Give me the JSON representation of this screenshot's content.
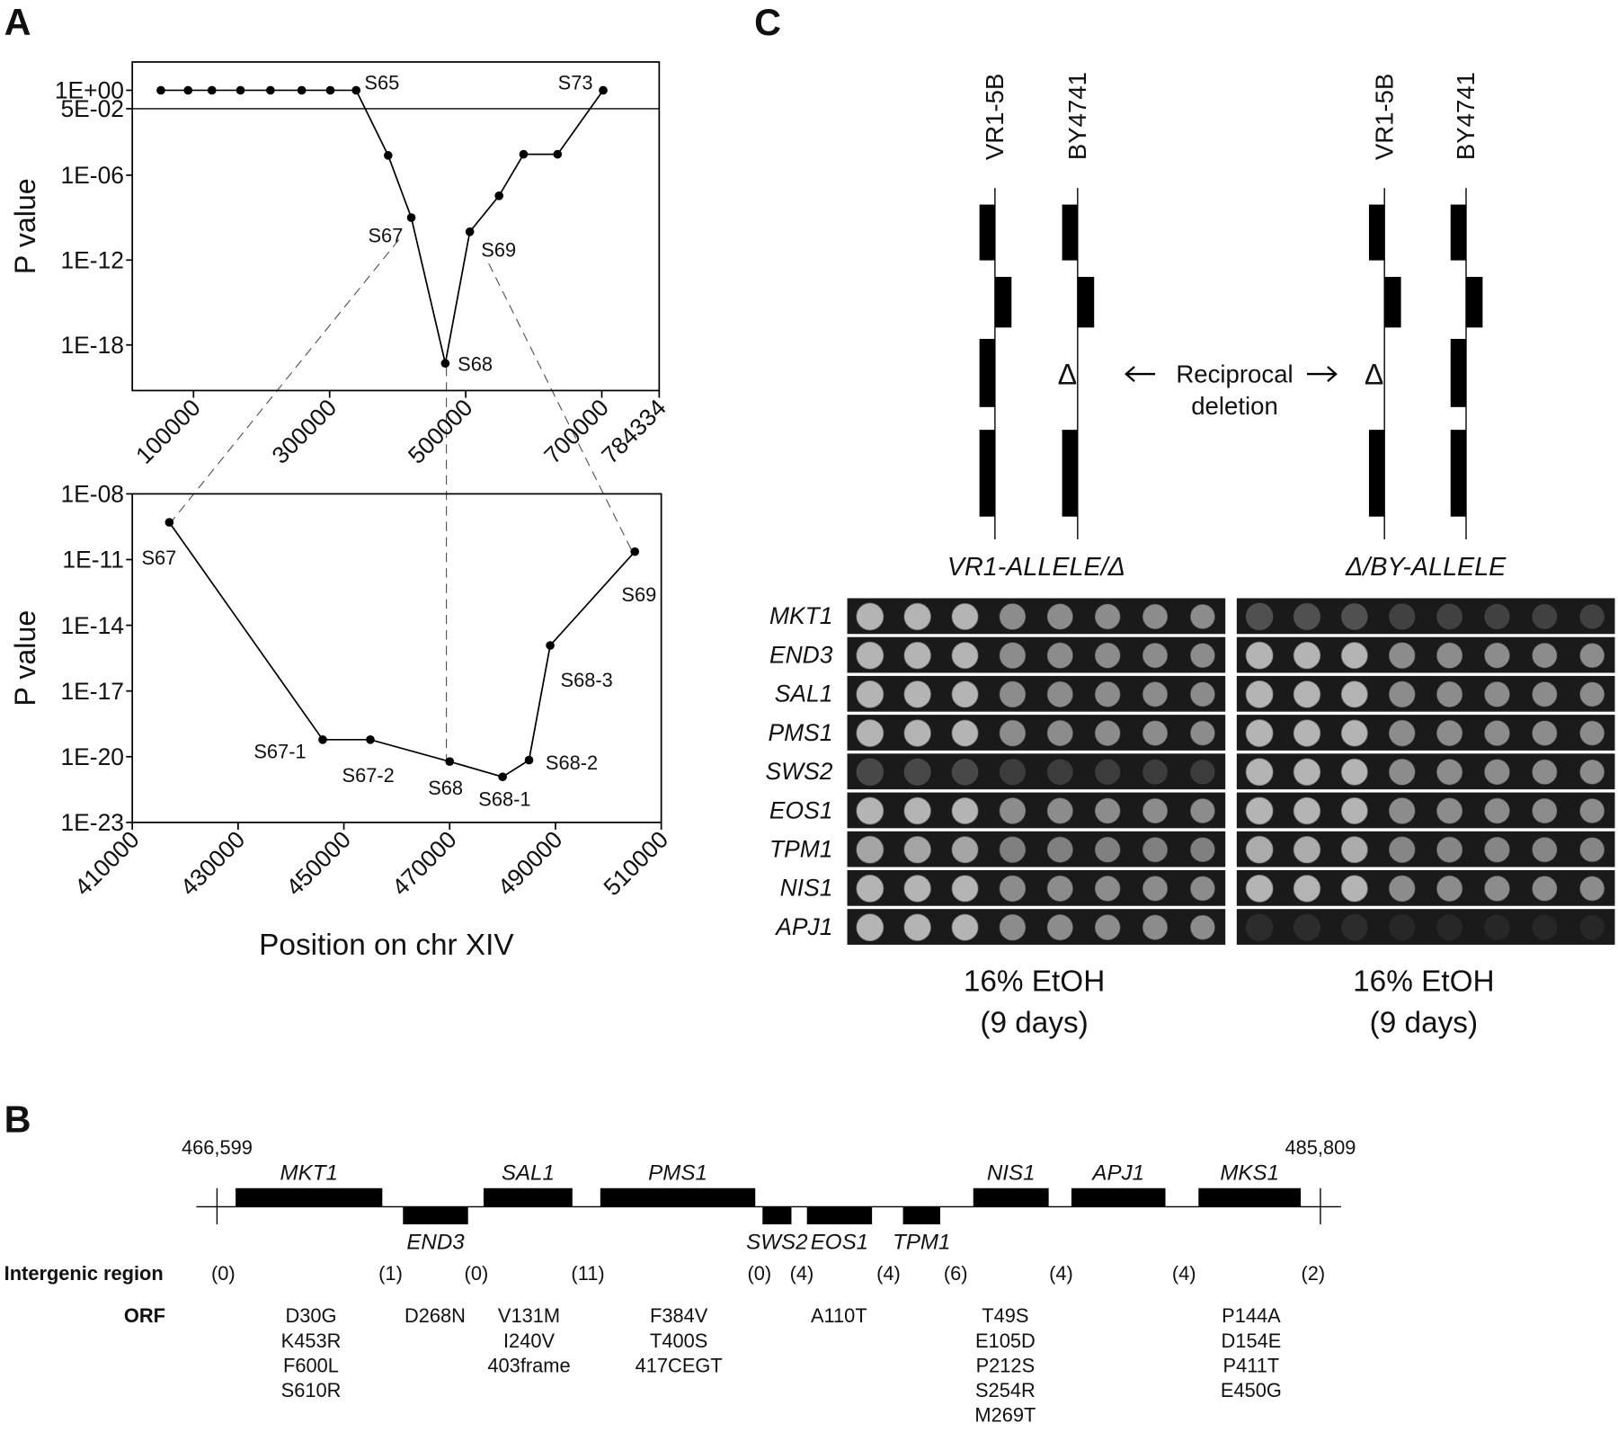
{
  "panel_labels": {
    "a": "A",
    "b": "B",
    "c": "C"
  },
  "chart_data": [
    {
      "type": "line",
      "y_label": "P value",
      "log_y": true,
      "color": "#000000",
      "threshold": 0.05,
      "x": [
        52000,
        92000,
        127000,
        169000,
        213000,
        259000,
        301000,
        339000,
        386000,
        420000,
        470000,
        506000,
        549000,
        585000,
        635000,
        702000
      ],
      "y": [
        1,
        1,
        1,
        1,
        1,
        1,
        1,
        1,
        2.5e-05,
        1e-09,
        5e-20,
        1e-10,
        3.5e-08,
        3e-05,
        3e-05,
        1
      ],
      "point_labels": [
        null,
        null,
        null,
        null,
        null,
        null,
        null,
        "S65",
        null,
        "S67",
        "S68",
        "S69",
        null,
        null,
        null,
        "S73"
      ],
      "xlim": [
        10000,
        784334
      ],
      "ylim": [
        6e-22,
        100
      ],
      "xticks": [
        100000,
        300000,
        500000,
        700000,
        784334
      ],
      "yticks": [
        {
          "value": 1,
          "label": "1E+00"
        },
        {
          "value": 0.05,
          "label": "5E-02"
        },
        {
          "value": 1e-06,
          "label": "1E-06"
        },
        {
          "value": 1e-12,
          "label": "1E-12"
        },
        {
          "value": 1e-18,
          "label": "1E-18"
        }
      ]
    },
    {
      "type": "line",
      "y_label": "P value",
      "x_label": "Position on chr XIV",
      "log_y": true,
      "color": "#000000",
      "x": [
        417000,
        446000,
        455000,
        470000,
        480000,
        485000,
        489000,
        505000
      ],
      "y": [
        5e-10,
        6e-20,
        6e-20,
        6e-21,
        1.2e-21,
        7e-21,
        1.2e-15,
        2.3e-11
      ],
      "point_labels": [
        "S67",
        "S67-1",
        "S67-2",
        "S68",
        "S68-1",
        "S68-2",
        "S68-3",
        "S69"
      ],
      "xlim": [
        410000,
        510000
      ],
      "ylim": [
        1e-23,
        1e-08
      ],
      "xticks": [
        410000,
        430000,
        450000,
        470000,
        490000,
        510000
      ],
      "yticks": [
        {
          "value": 1e-08,
          "label": "1E-08"
        },
        {
          "value": 1e-11,
          "label": "1E-11"
        },
        {
          "value": 1e-14,
          "label": "1E-14"
        },
        {
          "value": 1e-17,
          "label": "1E-17"
        },
        {
          "value": 1e-20,
          "label": "1E-20"
        },
        {
          "value": 1e-23,
          "label": "1E-23"
        }
      ]
    }
  ],
  "panel_b": {
    "start": "466,599",
    "end": "485,809",
    "genes": [
      {
        "name": "MKT1",
        "side": "above"
      },
      {
        "name": "END3",
        "side": "below"
      },
      {
        "name": "SAL1",
        "side": "above"
      },
      {
        "name": "PMS1",
        "side": "above"
      },
      {
        "name": "SWS2",
        "side": "below"
      },
      {
        "name": "EOS1",
        "side": "below"
      },
      {
        "name": "TPM1",
        "side": "below"
      },
      {
        "name": "NIS1",
        "side": "above"
      },
      {
        "name": "APJ1",
        "side": "above"
      },
      {
        "name": "MKS1",
        "side": "above"
      }
    ],
    "row_labels": [
      "Intergenic region",
      "ORF"
    ],
    "intergenic": [
      "(0)",
      "(1)",
      "(0)",
      "(11)",
      "(0)",
      "(4)",
      "(4)",
      "(6)",
      "(4)",
      "(4)",
      "(2)"
    ],
    "orf": [
      [
        "D30G",
        "K453R",
        "F600L",
        "S610R"
      ],
      [
        "D268N"
      ],
      [
        "V131M",
        "I240V",
        "403frame"
      ],
      [
        "F384V",
        "T400S",
        "417CEGT"
      ],
      [
        "A110T"
      ],
      [
        "T49S",
        "E105D",
        "P212S",
        "S254R",
        "M269T"
      ],
      [
        "P144A",
        "D154E",
        "P411T",
        "E450G"
      ]
    ]
  },
  "panel_c": {
    "strains": [
      "VR1-5B",
      "BY4741"
    ],
    "delta": "Δ",
    "deletion_label": [
      "Reciprocal",
      "deletion"
    ],
    "genotypes": [
      "VR1-ALLELE/Δ",
      "Δ/BY-ALLELE"
    ],
    "genes": [
      "MKT1",
      "END3",
      "SAL1",
      "PMS1",
      "SWS2",
      "EOS1",
      "TPM1",
      "NIS1",
      "APJ1"
    ],
    "condition": [
      "16% EtOH",
      "(9 days)"
    ]
  }
}
